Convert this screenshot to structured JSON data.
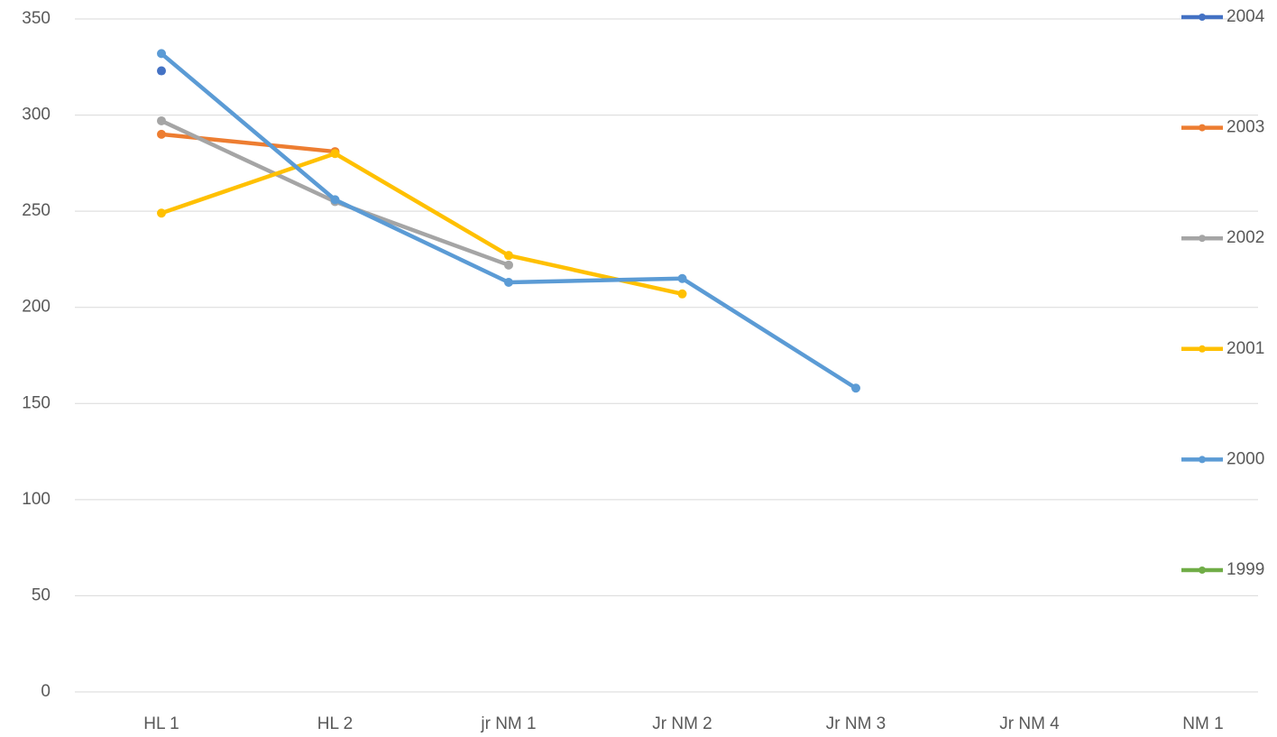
{
  "chart_data": {
    "type": "line",
    "categories": [
      "HL 1",
      "HL 2",
      "jr NM 1",
      "Jr NM 2",
      "Jr NM 3",
      "Jr NM 4",
      "NM 1"
    ],
    "series": [
      {
        "name": "2004",
        "color": "#4472c4",
        "values": [
          323,
          null,
          null,
          null,
          null,
          null,
          null
        ]
      },
      {
        "name": "2003",
        "color": "#ed7d31",
        "values": [
          290,
          281,
          null,
          null,
          null,
          null,
          null
        ]
      },
      {
        "name": "2002",
        "color": "#a5a5a5",
        "values": [
          297,
          255,
          222,
          null,
          null,
          null,
          null
        ]
      },
      {
        "name": "2001",
        "color": "#ffc000",
        "values": [
          249,
          280,
          227,
          207,
          null,
          null,
          null
        ]
      },
      {
        "name": "2000",
        "color": "#5b9bd5",
        "values": [
          332,
          256,
          213,
          215,
          158,
          null,
          null
        ]
      },
      {
        "name": "1999",
        "color": "#70ad47",
        "values": [
          null,
          null,
          null,
          null,
          null,
          null,
          null
        ]
      }
    ],
    "ylim": [
      0,
      350
    ],
    "yticks": [
      0,
      50,
      100,
      150,
      200,
      250,
      300,
      350
    ],
    "grid": true,
    "legend": "right"
  }
}
